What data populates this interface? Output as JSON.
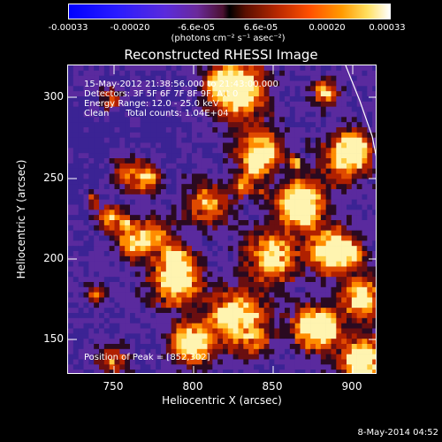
{
  "colorbar": {
    "ticks": [
      "-0.00033",
      "-0.00020",
      "-6.6e-05",
      "6.6e-05",
      "0.00020",
      "0.00033"
    ],
    "units": "(photons cm⁻² s⁻¹ asec⁻²)"
  },
  "title": "Reconstructed RHESSI Image",
  "info": {
    "line1": "15-May-2012 21:38:56.000 to 21:43:00.000",
    "line2": "Detectors: 3F 5F 6F 7F 8F 9F, Att 0",
    "line3": "Energy Range: 12.0 - 25.0 keV",
    "line4": "Clean      Total counts: 1.04E+04"
  },
  "peak": "Position of Peak = [852,302]",
  "axes": {
    "xlabel": "Heliocentric X (arcsec)",
    "ylabel": "Heliocentric Y (arcsec)",
    "xticks": [
      "750",
      "800",
      "850",
      "900"
    ],
    "yticks": [
      "300",
      "250",
      "200",
      "150"
    ]
  },
  "footer": "8-May-2014 04:52",
  "colors": {
    "background": "#000000",
    "limb": "#ffffff"
  }
}
